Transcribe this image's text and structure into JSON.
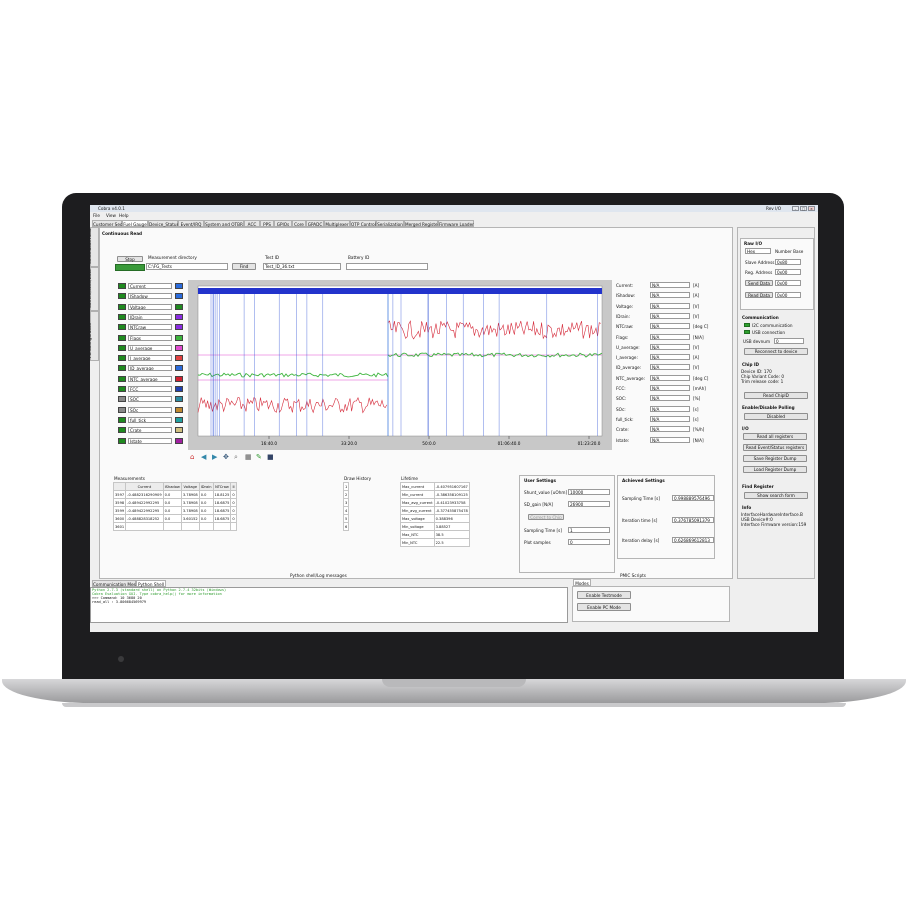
{
  "window": {
    "title": "Cobra v4.0.1",
    "panel_title": "Rev I/O"
  },
  "menu": [
    "File",
    "View",
    "Help"
  ],
  "tabs": [
    "Customer Section",
    "Fuel Gauge",
    "Device_Status",
    "Event/IRQ",
    "System and OTBR",
    "ACC",
    "PPS",
    "GPIOs",
    "Core",
    "GPADC",
    "Multiplexer",
    "OTP Control",
    "Serialization",
    "Merged Registers",
    "Firmware Loader"
  ],
  "side_tabs": [
    "Continuous Read",
    "Current/Scan/Data",
    "FG Configuration"
  ],
  "continuous_read": {
    "title": "Continuous Read",
    "stop_label": "Stop",
    "meas_dir_label": "Measurement directory",
    "meas_dir_value": "C:\\FG_Tests",
    "find_label": "Find",
    "test_id_label": "Test ID",
    "test_id_value": "Test_ID_36.txt",
    "battery_id_label": "Battery ID",
    "battery_id_value": ""
  },
  "signals": [
    {
      "name": "Current",
      "color": "#2a6bdc",
      "on": "#1f8a1f"
    },
    {
      "name": "IShadow",
      "color": "#2a6bdc",
      "on": "#1f8a1f"
    },
    {
      "name": "Voltage",
      "color": "#1f8a1f",
      "on": "#1f8a1f"
    },
    {
      "name": "IDrain",
      "color": "#8a2be2",
      "on": "#1f8a1f"
    },
    {
      "name": "NTCraw",
      "color": "#8a2be2",
      "on": "#1f8a1f"
    },
    {
      "name": "Flags",
      "color": "#3cb43c",
      "on": "#1f8a1f"
    },
    {
      "name": "U_average",
      "color": "#e04ad0",
      "on": "#1f8a1f"
    },
    {
      "name": "I_average",
      "color": "#e04040",
      "on": "#1f8a1f"
    },
    {
      "name": "ID_average",
      "color": "#2a6bdc",
      "on": "#1f8a1f"
    },
    {
      "name": "NTC_average",
      "color": "#d02030",
      "on": "#1f8a1f"
    },
    {
      "name": "FCC",
      "color": "#2040b0",
      "on": "#1f8a1f"
    },
    {
      "name": "SOC",
      "color": "#2a8aa0",
      "on": "#888888"
    },
    {
      "name": "SOc",
      "color": "#c08a30",
      "on": "#888888"
    },
    {
      "name": "full_tick",
      "color": "#20a0a0",
      "on": "#1f8a1f"
    },
    {
      "name": "Crate",
      "color": "#d0c080",
      "on": "#1f8a1f"
    },
    {
      "name": "Istate",
      "color": "#a020a0",
      "on": "#1f8a1f"
    }
  ],
  "readouts": [
    {
      "name": "Current:",
      "value": "N/A",
      "unit": "[A]"
    },
    {
      "name": "IShadow:",
      "value": "N/A",
      "unit": "[A]"
    },
    {
      "name": "Voltage:",
      "value": "N/A",
      "unit": "[V]"
    },
    {
      "name": "IDrain:",
      "value": "N/A",
      "unit": "[V]"
    },
    {
      "name": "NTCraw:",
      "value": "N/A",
      "unit": "[deg C]"
    },
    {
      "name": "Flags:",
      "value": "N/A",
      "unit": "[N/A]"
    },
    {
      "name": "U_average:",
      "value": "N/A",
      "unit": "[V]"
    },
    {
      "name": "I_average:",
      "value": "N/A",
      "unit": "[A]"
    },
    {
      "name": "ID_average:",
      "value": "N/A",
      "unit": "[V]"
    },
    {
      "name": "NTC_average:",
      "value": "N/A",
      "unit": "[deg C]"
    },
    {
      "name": "FCC:",
      "value": "N/A",
      "unit": "[mAh]"
    },
    {
      "name": "SOC:",
      "value": "N/A",
      "unit": "[%]"
    },
    {
      "name": "SOc:",
      "value": "N/A",
      "unit": "[s]"
    },
    {
      "name": "full_tick:",
      "value": "N/A",
      "unit": "[s]"
    },
    {
      "name": "Crate:",
      "value": "N/A",
      "unit": "[%/h]"
    },
    {
      "name": "Istate:",
      "value": "N/A",
      "unit": "[N/A]"
    }
  ],
  "plot": {
    "x_ticks": [
      "16:40.0",
      "33:20.0",
      "50:0.0",
      "01:06:40.0",
      "01:23:20.0"
    ]
  },
  "measurements": {
    "title": "Measurements",
    "columns": [
      "",
      "Current",
      "IShadow",
      "Voltage",
      "IDrain",
      "NTCraw",
      "II"
    ],
    "rows": [
      [
        "3597",
        "-0.4882316290909",
        "0.0",
        "3.78908",
        "0.0",
        "18.8125",
        "0"
      ],
      [
        "3598",
        "-0.489422992295",
        "0.0",
        "3.78908",
        "0.0",
        "18.6875",
        "0"
      ],
      [
        "3599",
        "-0.489422992295",
        "0.0",
        "3.78908",
        "0.0",
        "18.6875",
        "0"
      ],
      [
        "3600",
        "-0.488828318252",
        "0.0",
        "3.60152",
        "0.0",
        "18.6875",
        "0"
      ],
      [
        "3601",
        "",
        "",
        "",
        "",
        "",
        ""
      ]
    ]
  },
  "draw_history": {
    "title": "Draw History",
    "rows": [
      "1",
      "2",
      "3",
      "4",
      "5",
      "6"
    ]
  },
  "lifetime": {
    "title": "Lifetime",
    "rows": [
      [
        "Max_current",
        "-0.407951607167"
      ],
      [
        "Min_current",
        "-0.386358109125"
      ],
      [
        "Max_avg_current",
        "-0.41023933758"
      ],
      [
        "Min_avg_current",
        "-0.377455875478"
      ],
      [
        "Max_voltage",
        "0.388396"
      ],
      [
        "Min_voltage",
        "3.88527"
      ],
      [
        "Max_NTC",
        "38.5"
      ],
      [
        "Min_NTC",
        "22.5"
      ]
    ]
  },
  "user_settings": {
    "title": "User Settings",
    "shunt_label": "Shunt_value [uOhm]",
    "shunt_value": "10000",
    "sd_gain_label": "SD_gain [N/A]",
    "sd_gain_value": "26900",
    "correct_label": "Correct to Chip",
    "sampling_label": "Sampling Time [s]",
    "sampling_value": "1",
    "plot_label": "Plot samples",
    "plot_value": "0"
  },
  "achieved_settings": {
    "title": "Achieved Settings",
    "sampling_label": "Sampling Time [s]",
    "sampling_value": "0.998889576496",
    "iteration_label": "Iteration time [s]",
    "iteration_value": "0.376785091379",
    "iteration_delay_label": "Iteration delay [s]",
    "iteration_delay_value": "0.626869612813"
  },
  "rw": {
    "title": "Raw I/O",
    "mode_value": "Hex",
    "number_base_label": "Number Base",
    "slave_label": "Slave Address",
    "slave_value": "0x80",
    "reg_label": "Reg. Address",
    "reg_value": "0x00",
    "send_label": "Send Data",
    "send_value": "0x00",
    "read_label": "Read Data",
    "read_value": "0x00"
  },
  "communication": {
    "title": "Communication",
    "i2c_label": "I2C communication",
    "usb_label": "USB connection",
    "device_label": "USB devnum",
    "device_value": "0",
    "reconnect_label": "Reconnect to device"
  },
  "chip_id": {
    "title": "Chip ID",
    "lines": [
      "Device ID: 170",
      "Chip Variant Code: 0",
      "Trim release code: 1"
    ],
    "read_label": "Read ChipID"
  },
  "polling": {
    "title": "Enable/Disable Polling",
    "button": "Disabled"
  },
  "io": {
    "title": "I/O",
    "buttons": [
      "Read all registers",
      "Read Event/Status registers",
      "Save Register Dump",
      "Load Register Dump"
    ]
  },
  "find_register": {
    "title": "Find Register",
    "button": "Show search form"
  },
  "info": {
    "title": "Info",
    "lines": [
      "InterfaceHardwareInterface.B",
      "USB Device#:0",
      "Interface Firmware version:159"
    ]
  },
  "bottom": {
    "console_title": "Python shell/Log messages",
    "console_tabs": [
      "Communication Messages",
      "Python Shell"
    ],
    "console_lines": [
      "Python 2.7.3 (standard shell) on Python 2.7.4 32bits (Windows)",
      "Cobra Evaluation GUI. Type cobra_help() for more information",
      ">>> Command: 10 3680 20",
      "read_all :  3.806684569979"
    ],
    "modes_title": "PMIC Scripts",
    "modes_tab": "Modes",
    "modes_buttons": [
      "Enable Testmode",
      "Enable PC Mode"
    ]
  }
}
